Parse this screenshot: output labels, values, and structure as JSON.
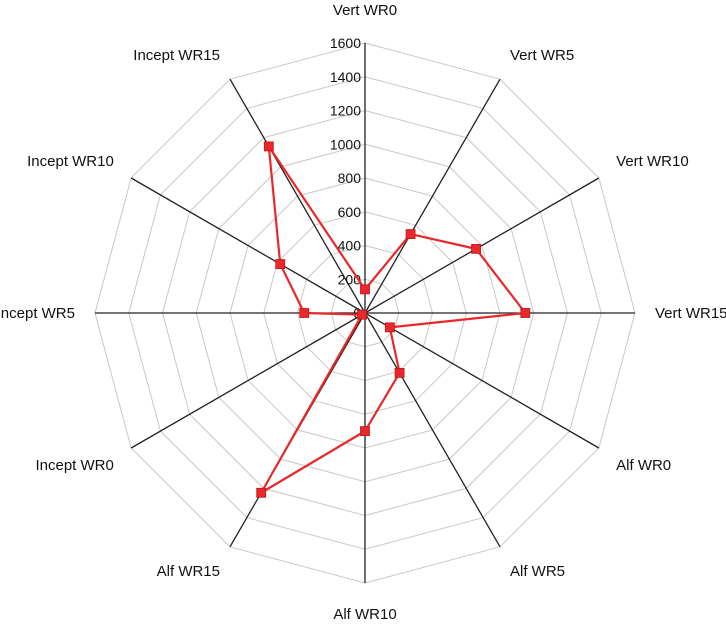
{
  "chart_data": {
    "type": "radar",
    "categories": [
      "Vert WR0",
      "Vert WR5",
      "Vert WR10",
      "Vert WR15",
      "Alf WR0",
      "Alf WR5",
      "Alf WR10",
      "Alf WR15",
      "Incept WR0",
      "Incept WR5",
      "Incept WR10",
      "Incept WR15"
    ],
    "radial_ticks": [
      "0",
      "200",
      "400",
      "600",
      "800",
      "1000",
      "1200",
      "1400",
      "1600"
    ],
    "rlim": [
      0,
      1600
    ],
    "grid": true,
    "series": [
      {
        "values": [
          140,
          540,
          760,
          950,
          170,
          410,
          700,
          1230,
          20,
          360,
          580,
          1140
        ],
        "color": "#e8282b",
        "marker": "square"
      }
    ],
    "colors": {
      "grid": "#c8c8c8",
      "axis": "#222222",
      "series": "#e8282b"
    }
  }
}
